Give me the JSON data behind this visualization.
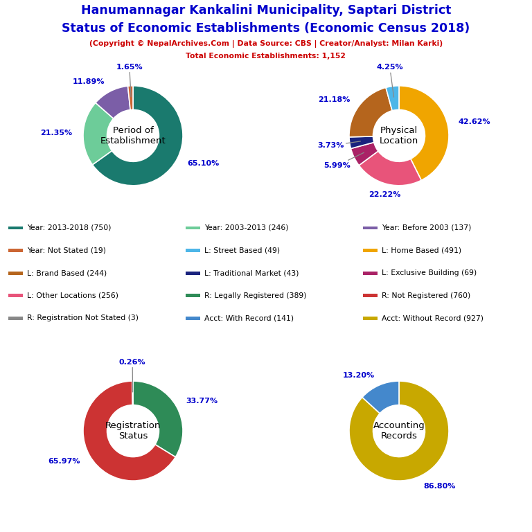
{
  "title_line1": "Hanumannagar Kankalini Municipality, Saptari District",
  "title_line2": "Status of Economic Establishments (Economic Census 2018)",
  "subtitle": "(Copyright © NepalArchives.Com | Data Source: CBS | Creator/Analyst: Milan Karki)",
  "subtitle2": "Total Economic Establishments: 1,152",
  "title_color": "#0000cc",
  "subtitle_color": "#cc0000",
  "pie1_label": "Period of\nEstablishment",
  "pie1_values": [
    65.1,
    21.35,
    11.89,
    1.65
  ],
  "pie1_colors": [
    "#1a7a6e",
    "#6dcc99",
    "#7b5ea7",
    "#cc6633"
  ],
  "pie1_labels": [
    "65.10%",
    "21.35%",
    "11.89%",
    "1.65%"
  ],
  "pie1_label_positions": [
    "left_top",
    "bottom",
    "right_bottom",
    "right_mid"
  ],
  "pie2_label": "Physical\nLocation",
  "pie2_values": [
    42.62,
    22.22,
    5.99,
    3.73,
    21.18,
    4.25
  ],
  "pie2_colors": [
    "#f0a500",
    "#e8547a",
    "#aa2266",
    "#1a237e",
    "#b5651d",
    "#4db6e8"
  ],
  "pie2_labels": [
    "42.62%",
    "22.22%",
    "5.99%",
    "3.73%",
    "21.18%",
    "4.25%"
  ],
  "pie3_label": "Registration\nStatus",
  "pie3_values": [
    33.77,
    65.97,
    0.26
  ],
  "pie3_colors": [
    "#2e8b57",
    "#cc3333",
    "#888888"
  ],
  "pie3_labels": [
    "33.77%",
    "65.97%",
    "0.26%"
  ],
  "pie4_label": "Accounting\nRecords",
  "pie4_values": [
    86.8,
    13.2
  ],
  "pie4_colors": [
    "#c8a800",
    "#4488cc"
  ],
  "pie4_labels": [
    "86.80%",
    "13.20%"
  ],
  "legend_items": [
    {
      "label": "Year: 2013-2018 (750)",
      "color": "#1a7a6e"
    },
    {
      "label": "Year: Not Stated (19)",
      "color": "#cc6633"
    },
    {
      "label": "L: Brand Based (244)",
      "color": "#b5651d"
    },
    {
      "label": "L: Other Locations (256)",
      "color": "#e8547a"
    },
    {
      "label": "R: Registration Not Stated (3)",
      "color": "#888888"
    },
    {
      "label": "Year: 2003-2013 (246)",
      "color": "#6dcc99"
    },
    {
      "label": "L: Street Based (49)",
      "color": "#4db6e8"
    },
    {
      "label": "L: Traditional Market (43)",
      "color": "#1a237e"
    },
    {
      "label": "R: Legally Registered (389)",
      "color": "#2e8b57"
    },
    {
      "label": "Acct: With Record (141)",
      "color": "#4488cc"
    },
    {
      "label": "Year: Before 2003 (137)",
      "color": "#7b5ea7"
    },
    {
      "label": "L: Home Based (491)",
      "color": "#f0a500"
    },
    {
      "label": "L: Exclusive Building (69)",
      "color": "#aa2266"
    },
    {
      "label": "R: Not Registered (760)",
      "color": "#cc3333"
    },
    {
      "label": "Acct: Without Record (927)",
      "color": "#c8a800"
    }
  ],
  "label_color": "#0000cc",
  "background_color": "#ffffff"
}
